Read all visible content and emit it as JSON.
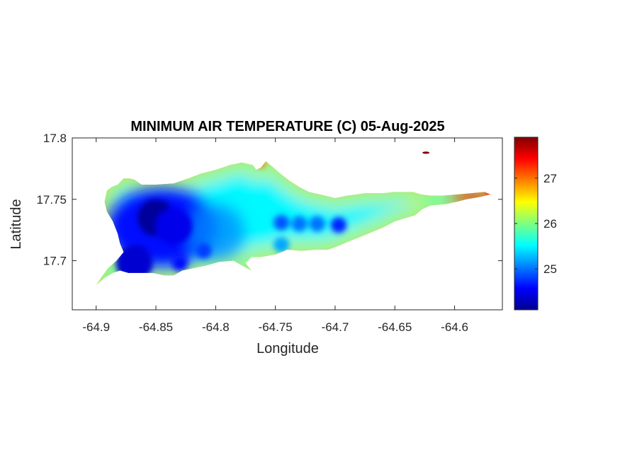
{
  "chart_data": {
    "type": "heatmap",
    "title": "MINIMUM AIR TEMPERATURE (C) 05-Aug-2025",
    "xlabel": "Longitude",
    "ylabel": "Latitude",
    "xlim": [
      -64.92,
      -64.56
    ],
    "ylim": [
      17.66,
      17.8
    ],
    "xticks": [
      -64.9,
      -64.85,
      -64.8,
      -64.75,
      -64.7,
      -64.65,
      -64.6
    ],
    "xtick_labels": [
      "-64.9",
      "-64.85",
      "-64.8",
      "-64.75",
      "-64.7",
      "-64.65",
      "-64.6"
    ],
    "yticks": [
      17.7,
      17.75,
      17.8
    ],
    "ytick_labels": [
      "17.7",
      "17.75",
      "17.8"
    ],
    "colorbar": {
      "colormap": "jet",
      "limits": [
        24.1,
        27.9
      ],
      "ticks": [
        25,
        26,
        27
      ],
      "tick_labels": [
        "25",
        "26",
        "27"
      ]
    },
    "grid": false,
    "island_outline": [
      [
        -64.9,
        17.68
      ],
      [
        -64.893,
        17.686
      ],
      [
        -64.886,
        17.69
      ],
      [
        -64.88,
        17.692
      ],
      [
        -64.873,
        17.69
      ],
      [
        -64.863,
        17.69
      ],
      [
        -64.853,
        17.69
      ],
      [
        -64.843,
        17.688
      ],
      [
        -64.835,
        17.688
      ],
      [
        -64.828,
        17.692
      ],
      [
        -64.818,
        17.694
      ],
      [
        -64.808,
        17.696
      ],
      [
        -64.797,
        17.699
      ],
      [
        -64.785,
        17.7
      ],
      [
        -64.776,
        17.695
      ],
      [
        -64.77,
        17.692
      ],
      [
        -64.775,
        17.698
      ],
      [
        -64.77,
        17.703
      ],
      [
        -64.762,
        17.703
      ],
      [
        -64.75,
        17.705
      ],
      [
        -64.74,
        17.709
      ],
      [
        -64.728,
        17.708
      ],
      [
        -64.717,
        17.709
      ],
      [
        -64.706,
        17.709
      ],
      [
        -64.7,
        17.711
      ],
      [
        -64.69,
        17.715
      ],
      [
        -64.68,
        17.719
      ],
      [
        -64.67,
        17.723
      ],
      [
        -64.66,
        17.727
      ],
      [
        -64.65,
        17.732
      ],
      [
        -64.64,
        17.735
      ],
      [
        -64.633,
        17.737
      ],
      [
        -64.627,
        17.742
      ],
      [
        -64.62,
        17.745
      ],
      [
        -64.608,
        17.746
      ],
      [
        -64.598,
        17.748
      ],
      [
        -64.59,
        17.75
      ],
      [
        -64.578,
        17.752
      ],
      [
        -64.57,
        17.754
      ],
      [
        -64.575,
        17.756
      ],
      [
        -64.586,
        17.755
      ],
      [
        -64.597,
        17.754
      ],
      [
        -64.61,
        17.753
      ],
      [
        -64.62,
        17.753
      ],
      [
        -64.628,
        17.754
      ],
      [
        -64.635,
        17.756
      ],
      [
        -64.65,
        17.756
      ],
      [
        -64.66,
        17.755
      ],
      [
        -64.675,
        17.755
      ],
      [
        -64.69,
        17.753
      ],
      [
        -64.7,
        17.751
      ],
      [
        -64.713,
        17.754
      ],
      [
        -64.722,
        17.756
      ],
      [
        -64.73,
        17.76
      ],
      [
        -64.738,
        17.765
      ],
      [
        -64.746,
        17.771
      ],
      [
        -64.753,
        17.777
      ],
      [
        -64.758,
        17.781
      ],
      [
        -64.762,
        17.776
      ],
      [
        -64.766,
        17.774
      ],
      [
        -64.769,
        17.778
      ],
      [
        -64.778,
        17.78
      ],
      [
        -64.788,
        17.778
      ],
      [
        -64.8,
        17.774
      ],
      [
        -64.812,
        17.771
      ],
      [
        -64.823,
        17.767
      ],
      [
        -64.835,
        17.763
      ],
      [
        -64.85,
        17.762
      ],
      [
        -64.862,
        17.762
      ],
      [
        -64.868,
        17.766
      ],
      [
        -64.872,
        17.767
      ],
      [
        -64.877,
        17.767
      ],
      [
        -64.882,
        17.762
      ],
      [
        -64.887,
        17.76
      ],
      [
        -64.891,
        17.757
      ],
      [
        -64.893,
        17.748
      ],
      [
        -64.891,
        17.74
      ],
      [
        -64.886,
        17.732
      ],
      [
        -64.882,
        17.722
      ],
      [
        -64.88,
        17.714
      ],
      [
        -64.877,
        17.707
      ],
      [
        -64.883,
        17.7
      ],
      [
        -64.89,
        17.694
      ],
      [
        -64.896,
        17.686
      ]
    ],
    "cold_cores": [
      {
        "lon": -64.85,
        "lat": 17.735,
        "value": 24.2
      },
      {
        "lon": -64.835,
        "lat": 17.728,
        "value": 24.5
      },
      {
        "lon": -64.868,
        "lat": 17.698,
        "value": 24.4
      },
      {
        "lon": -64.83,
        "lat": 17.698,
        "value": 24.6
      },
      {
        "lon": -64.81,
        "lat": 17.708,
        "value": 24.8
      },
      {
        "lon": -64.745,
        "lat": 17.731,
        "value": 24.9
      },
      {
        "lon": -64.73,
        "lat": 17.73,
        "value": 25.0
      },
      {
        "lon": -64.715,
        "lat": 17.73,
        "value": 25.0
      },
      {
        "lon": -64.697,
        "lat": 17.729,
        "value": 24.7
      },
      {
        "lon": -64.745,
        "lat": 17.713,
        "value": 25.2
      }
    ],
    "warm_spots": [
      {
        "lon": -64.624,
        "lat": 17.788,
        "value": 27.9
      },
      {
        "lon": -64.57,
        "lat": 17.755,
        "value": 27.4
      },
      {
        "lon": -64.762,
        "lat": 17.779,
        "value": 27.0
      }
    ]
  }
}
